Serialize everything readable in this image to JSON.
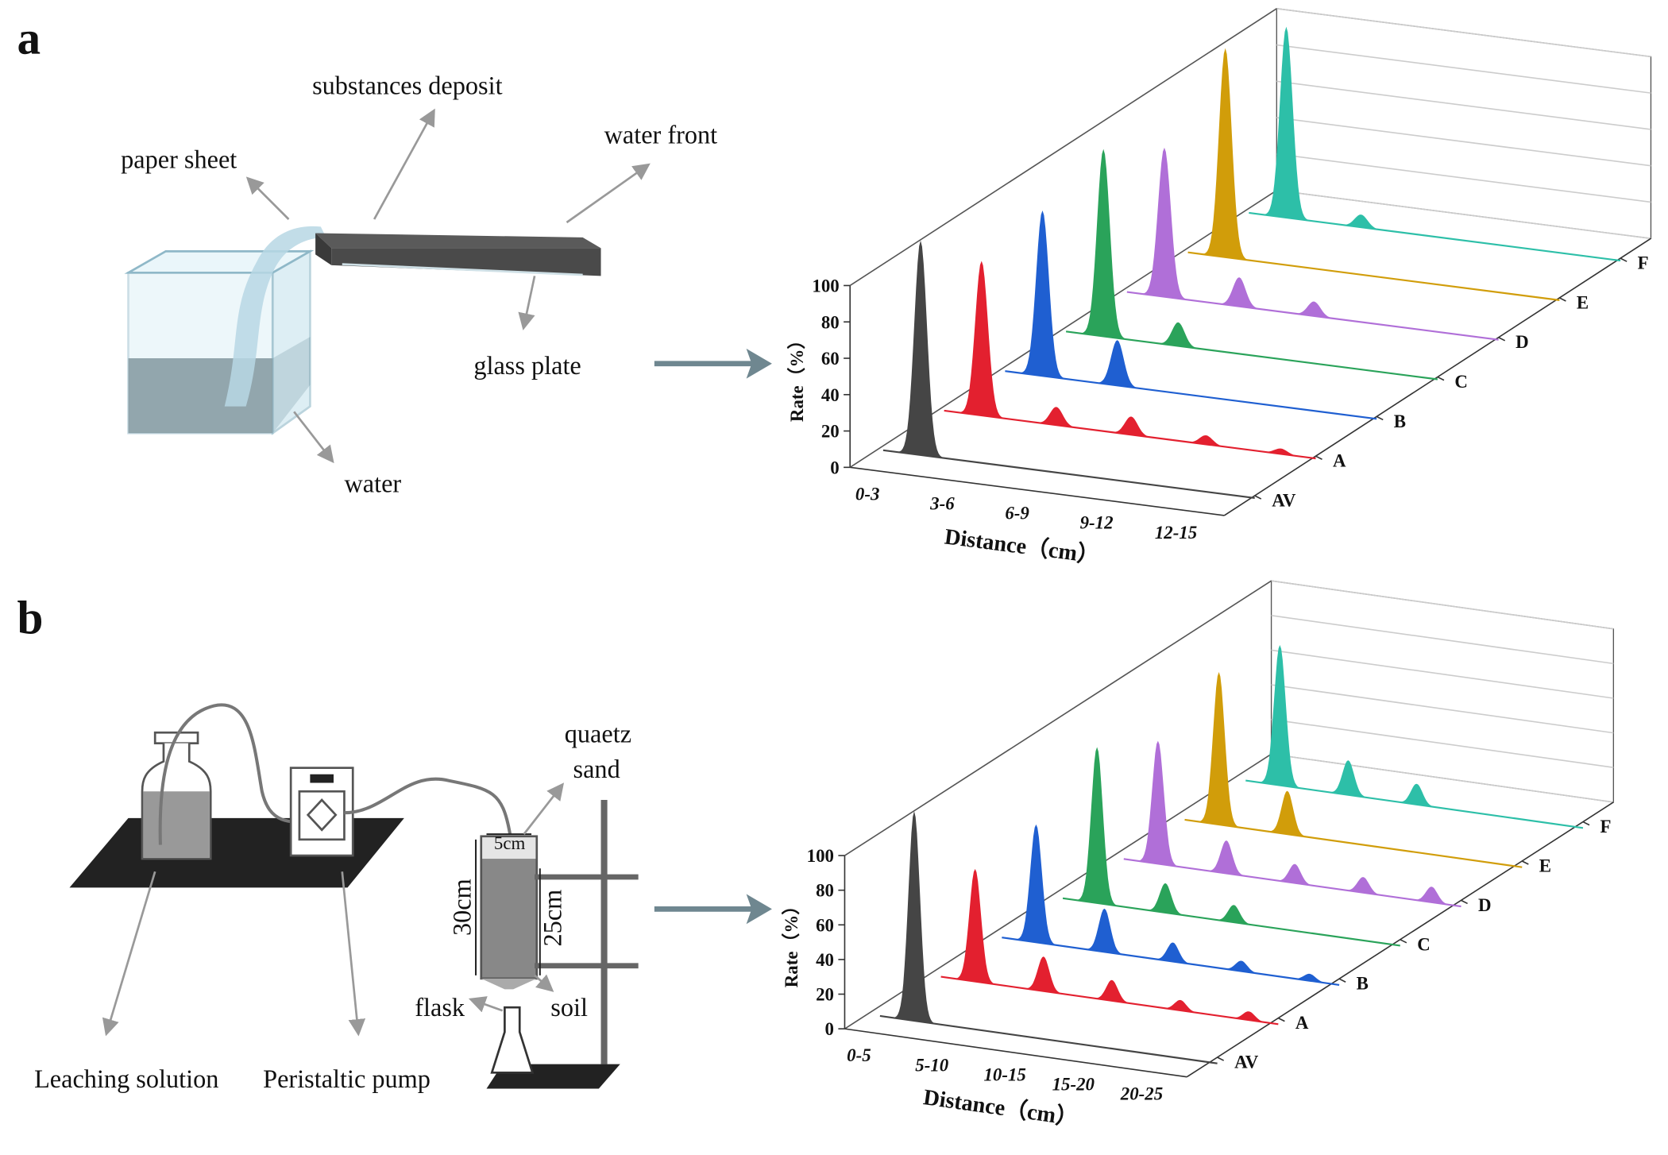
{
  "panel_labels": [
    "a",
    "b"
  ],
  "diagram_a": {
    "labels": [
      "paper sheet",
      "substances deposit",
      "water front",
      "glass plate",
      "water"
    ]
  },
  "diagram_b": {
    "labels": [
      "quaetz",
      "sand",
      "5cm",
      "30cm",
      "25cm",
      "flask",
      "soil",
      "Leaching solution",
      "Peristaltic pump"
    ]
  },
  "chart_data": [
    {
      "type": "waterfall",
      "xlabel": "Distance（cm）",
      "ylabel": "Rate（%）",
      "categories": [
        "0-3",
        "3-6",
        "6-9",
        "9-12",
        "12-15"
      ],
      "ylim": [
        0,
        100
      ],
      "yticks": [
        0,
        20,
        40,
        60,
        80,
        100
      ],
      "series": [
        {
          "name": "AV",
          "color": "#454545",
          "values": [
            118,
            0,
            0,
            0,
            0
          ]
        },
        {
          "name": "A",
          "color": "#e3202f",
          "values": [
            85,
            10,
            10,
            5,
            3
          ]
        },
        {
          "name": "B",
          "color": "#1f5fd1",
          "values": [
            91,
            25,
            0,
            0,
            0
          ]
        },
        {
          "name": "C",
          "color": "#2aa35a",
          "values": [
            103,
            13,
            0,
            0,
            0
          ]
        },
        {
          "name": "D",
          "color": "#b06fd8",
          "values": [
            82,
            16,
            8,
            0,
            0
          ]
        },
        {
          "name": "E",
          "color": "#d19d0a",
          "values": [
            115,
            0,
            0,
            0,
            0
          ]
        },
        {
          "name": "F",
          "color": "#2dbfa8",
          "values": [
            105,
            7,
            0,
            0,
            0
          ]
        }
      ]
    },
    {
      "type": "waterfall",
      "xlabel": "Distance（cm）",
      "ylabel": "Rate（%）",
      "categories": [
        "0-5",
        "5-10",
        "10-15",
        "15-20",
        "20-25"
      ],
      "ylim": [
        0,
        100
      ],
      "yticks": [
        0,
        20,
        40,
        60,
        80,
        100
      ],
      "series": [
        {
          "name": "AV",
          "color": "#454545",
          "values": [
            121,
            0,
            0,
            0,
            0
          ]
        },
        {
          "name": "A",
          "color": "#e3202f",
          "values": [
            65,
            20,
            12,
            6,
            5
          ]
        },
        {
          "name": "B",
          "color": "#1f5fd1",
          "values": [
            68,
            25,
            11,
            6,
            4
          ]
        },
        {
          "name": "C",
          "color": "#2aa35a",
          "values": [
            90,
            17,
            10,
            0,
            0
          ]
        },
        {
          "name": "D",
          "color": "#b06fd8",
          "values": [
            71,
            19,
            11,
            9,
            9
          ]
        },
        {
          "name": "E",
          "color": "#d19d0a",
          "values": [
            88,
            25,
            0,
            0,
            0
          ]
        },
        {
          "name": "F",
          "color": "#2dbfa8",
          "values": [
            81,
            20,
            12,
            0,
            0
          ]
        }
      ]
    }
  ]
}
